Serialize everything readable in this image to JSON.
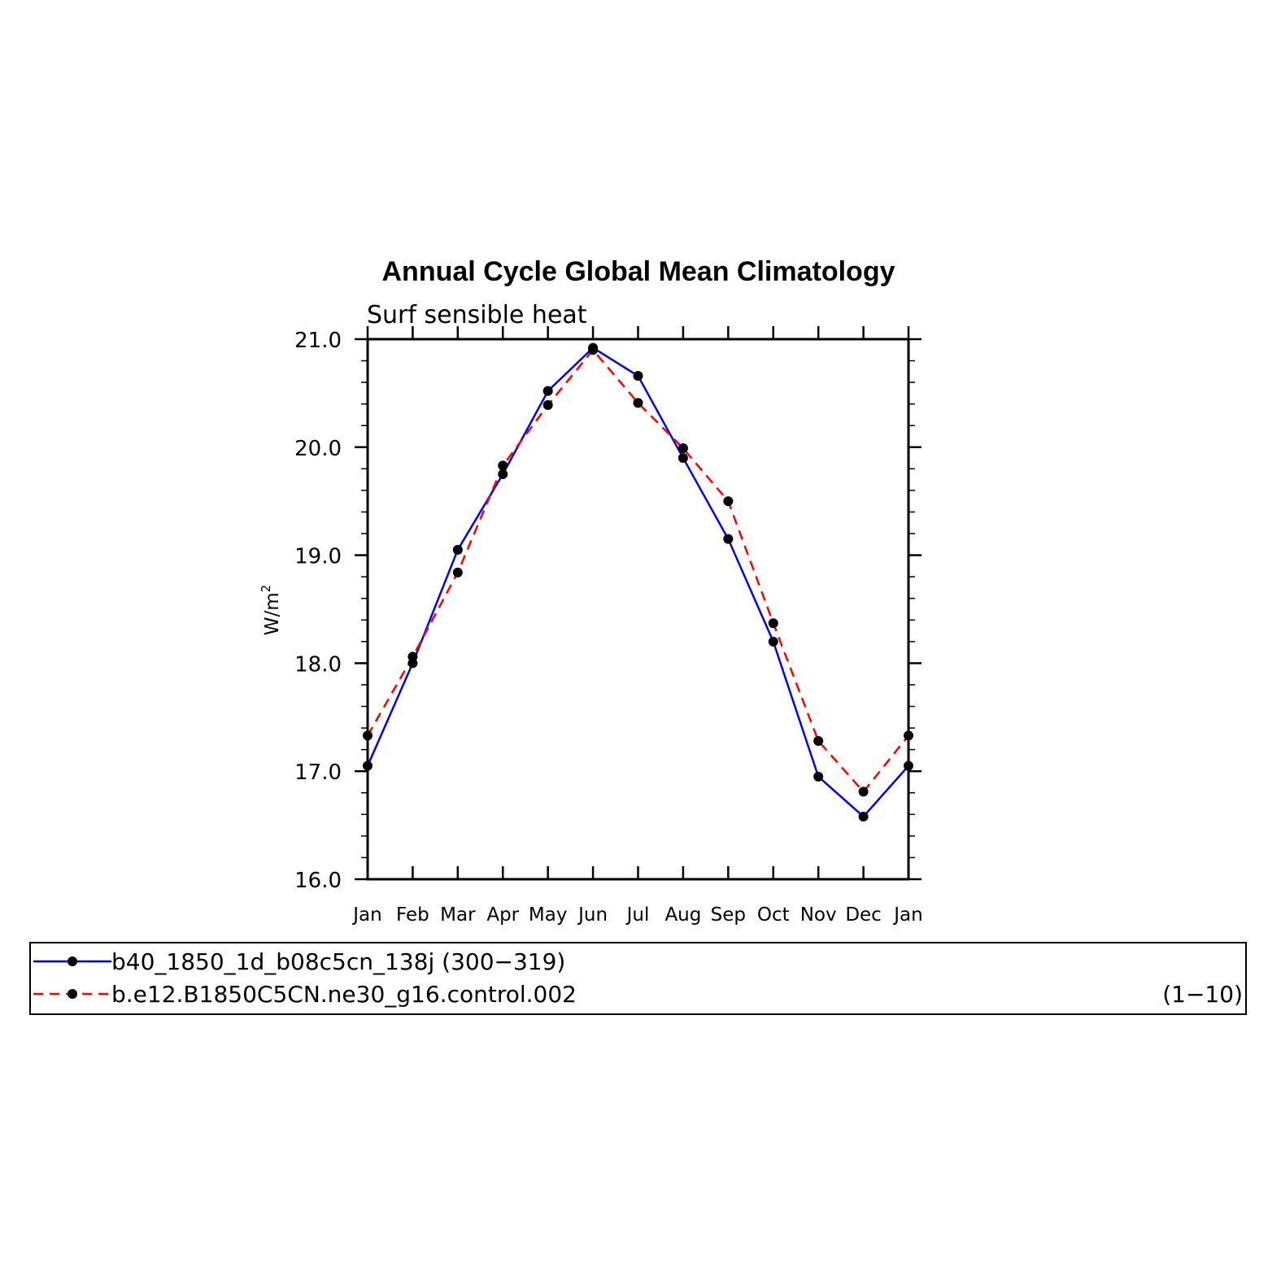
{
  "chart_data": {
    "type": "line",
    "title": "Annual Cycle Global Mean Climatology",
    "subtitle": "Surf sensible heat",
    "ylabel": "W/m",
    "ylabel_superscript": "2",
    "ylim": [
      16.0,
      21.0
    ],
    "yticks": [
      "16.0",
      "17.0",
      "18.0",
      "19.0",
      "20.0",
      "21.0"
    ],
    "categories": [
      "Jan",
      "Feb",
      "Mar",
      "Apr",
      "May",
      "Jun",
      "Jul",
      "Aug",
      "Sep",
      "Oct",
      "Nov",
      "Dec",
      "Jan"
    ],
    "grid": false,
    "legend_position": "bottom",
    "series": [
      {
        "name": "b40_1850_1d_b08c5cn_138j",
        "years": "(300−319)",
        "color": "#0000ff",
        "dash": "solid",
        "values": [
          17.05,
          18.0,
          19.05,
          19.75,
          20.52,
          20.92,
          20.66,
          19.9,
          19.15,
          18.2,
          16.95,
          16.58,
          17.05
        ]
      },
      {
        "name": "b.e12.B1850C5CN.ne30_g16.control.002",
        "years": "(1−10)",
        "color": "#ff0000",
        "dash": "dashed",
        "values": [
          17.33,
          18.06,
          18.84,
          19.83,
          20.39,
          20.9,
          20.41,
          19.99,
          19.5,
          18.37,
          17.28,
          16.81,
          17.33
        ]
      }
    ]
  }
}
